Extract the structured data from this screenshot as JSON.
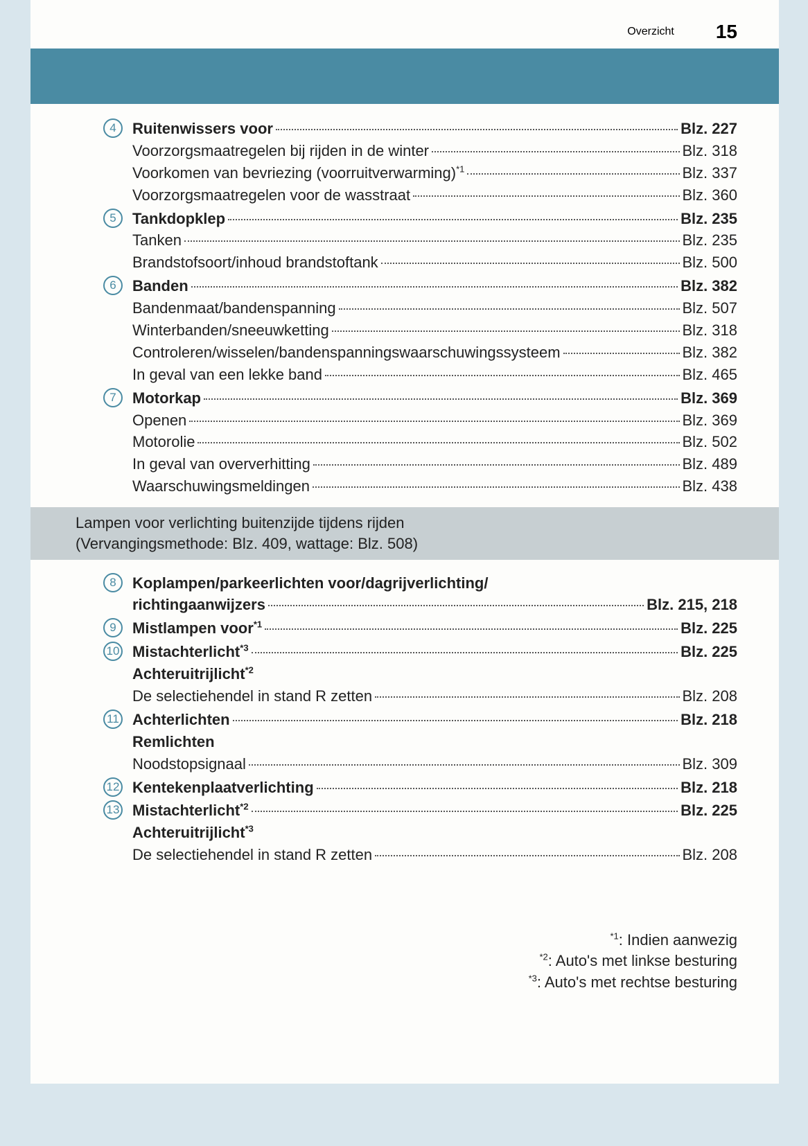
{
  "header": {
    "title": "Overzicht",
    "page": "15"
  },
  "colors": {
    "accent": "#4a8ba3",
    "section_bg": "#c7cfd2",
    "page_bg": "#fdfdfb",
    "outer_bg": "#d9e6ed"
  },
  "sections": [
    {
      "num": "4",
      "lines": [
        {
          "label": "Ruitenwissers voor",
          "bold": true,
          "page": "Blz. 227",
          "page_bold": true
        },
        {
          "label": "Voorzorgsmaatregelen bij rijden in de winter",
          "page": "Blz. 318"
        },
        {
          "label": "Voorkomen van bevriezing (voorruitverwarming)",
          "sup": "*1",
          "page": "Blz. 337"
        },
        {
          "label": "Voorzorgsmaatregelen voor de wasstraat",
          "page": "Blz. 360"
        }
      ]
    },
    {
      "num": "5",
      "lines": [
        {
          "label": "Tankdopklep",
          "bold": true,
          "page": "Blz. 235",
          "page_bold": true
        },
        {
          "label": "Tanken",
          "page": "Blz. 235"
        },
        {
          "label": "Brandstofsoort/inhoud brandstoftank",
          "page": "Blz. 500"
        }
      ]
    },
    {
      "num": "6",
      "lines": [
        {
          "label": "Banden",
          "bold": true,
          "page": "Blz. 382",
          "page_bold": true
        },
        {
          "label": "Bandenmaat/bandenspanning",
          "page": "Blz. 507"
        },
        {
          "label": "Winterbanden/sneeuwketting",
          "page": "Blz. 318"
        },
        {
          "label": "Controleren/wisselen/bandenspanningswaarschuwingssysteem",
          "page": "Blz. 382"
        },
        {
          "label": "In geval van een lekke band",
          "page": "Blz. 465"
        }
      ]
    },
    {
      "num": "7",
      "lines": [
        {
          "label": "Motorkap",
          "bold": true,
          "page": "Blz. 369",
          "page_bold": true
        },
        {
          "label": "Openen",
          "page": "Blz. 369"
        },
        {
          "label": "Motorolie",
          "page": "Blz. 502"
        },
        {
          "label": "In geval van oververhitting",
          "page": "Blz. 489"
        },
        {
          "label": "Waarschuwingsmeldingen",
          "page": "Blz. 438"
        }
      ]
    }
  ],
  "section_bar": {
    "line1": "Lampen voor verlichting buitenzijde tijdens rijden",
    "line2": "(Vervangingsmethode: Blz. 409, wattage: Blz. 508)"
  },
  "sections2": [
    {
      "num": "8",
      "lines": [
        {
          "label": "Koplampen/parkeerlichten voor/dagrijverlichting/",
          "bold": true,
          "no_page": true
        },
        {
          "label": "richtingaanwijzers",
          "bold": true,
          "page": "Blz. 215, 218",
          "page_bold": true
        }
      ]
    },
    {
      "num": "9",
      "lines": [
        {
          "label": "Mistlampen voor",
          "sup": "*1",
          "bold": true,
          "page": "Blz. 225",
          "page_bold": true
        }
      ]
    },
    {
      "num": "10",
      "lines": [
        {
          "label": "Mistachterlicht",
          "sup": "*3",
          "bold": true,
          "page": "Blz. 225",
          "page_bold": true
        },
        {
          "label": "Achteruitrijlicht",
          "sup": "*2",
          "bold": true,
          "no_page": true
        },
        {
          "label": "De selectiehendel in stand R zetten",
          "page": "Blz. 208"
        }
      ]
    },
    {
      "num": "11",
      "lines": [
        {
          "label": "Achterlichten",
          "bold": true,
          "page": "Blz. 218",
          "page_bold": true
        },
        {
          "label": "Remlichten",
          "bold": true,
          "no_page": true
        },
        {
          "label": "Noodstopsignaal",
          "page": "Blz. 309"
        }
      ]
    },
    {
      "num": "12",
      "lines": [
        {
          "label": "Kentekenplaatverlichting",
          "bold": true,
          "page": "Blz. 218",
          "page_bold": true
        }
      ]
    },
    {
      "num": "13",
      "lines": [
        {
          "label": "Mistachterlicht",
          "sup": "*2",
          "bold": true,
          "page": "Blz. 225",
          "page_bold": true
        },
        {
          "label": "Achteruitrijlicht",
          "sup": "*3",
          "bold": true,
          "no_page": true
        },
        {
          "label": "De selectiehendel in stand R zetten",
          "page": "Blz. 208"
        }
      ]
    }
  ],
  "footnotes": [
    {
      "sup": "*1",
      "text": ": Indien aanwezig"
    },
    {
      "sup": "*2",
      "text": ": Auto's met linkse besturing"
    },
    {
      "sup": "*3",
      "text": ": Auto's met rechtse besturing"
    }
  ]
}
